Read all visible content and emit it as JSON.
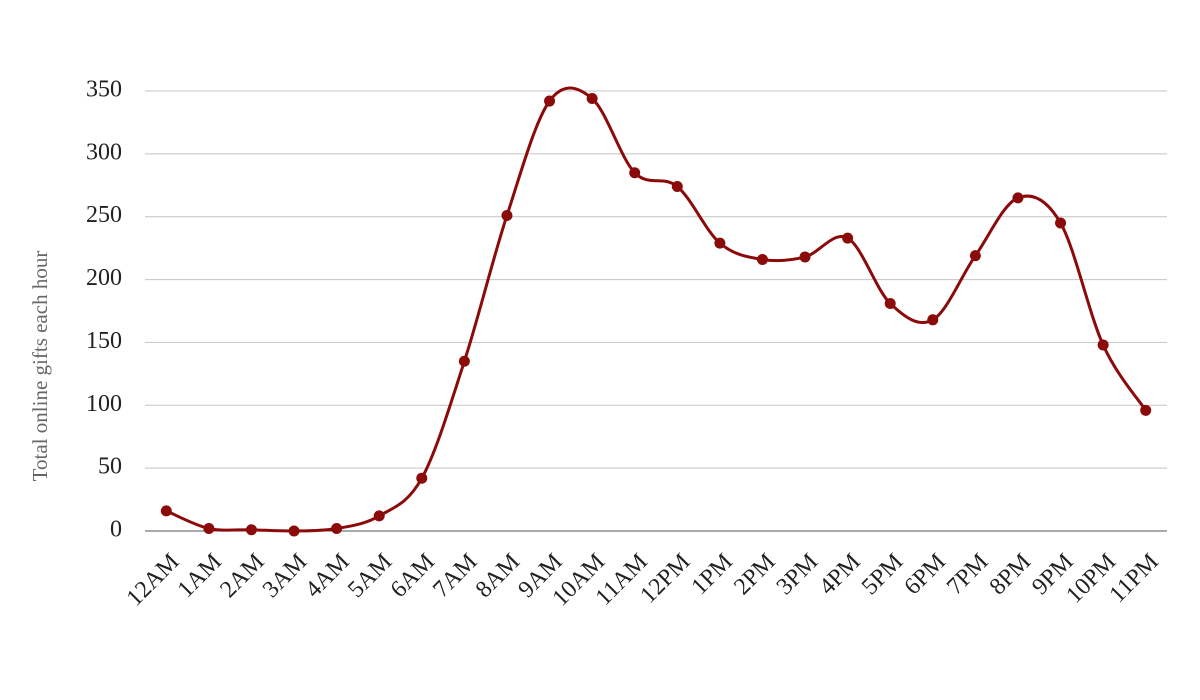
{
  "chart_data": {
    "type": "line",
    "y_label": "Total online gifts each hour",
    "categories": [
      "12AM",
      "1AM",
      "2AM",
      "3AM",
      "4AM",
      "5AM",
      "6AM",
      "7AM",
      "8AM",
      "9AM",
      "10AM",
      "11AM",
      "12PM",
      "1PM",
      "2PM",
      "3PM",
      "4PM",
      "5PM",
      "6PM",
      "7PM",
      "8PM",
      "9PM",
      "10PM",
      "11PM"
    ],
    "values": [
      16,
      2,
      1,
      0,
      2,
      12,
      42,
      135,
      251,
      342,
      344,
      285,
      274,
      229,
      216,
      218,
      233,
      181,
      168,
      219,
      265,
      245,
      148,
      96
    ],
    "color": "#8b0a0a",
    "ylim": [
      0,
      350
    ],
    "yticks": [
      0,
      50,
      100,
      150,
      200,
      250,
      300,
      350
    ],
    "grid": true,
    "smooth": true
  }
}
